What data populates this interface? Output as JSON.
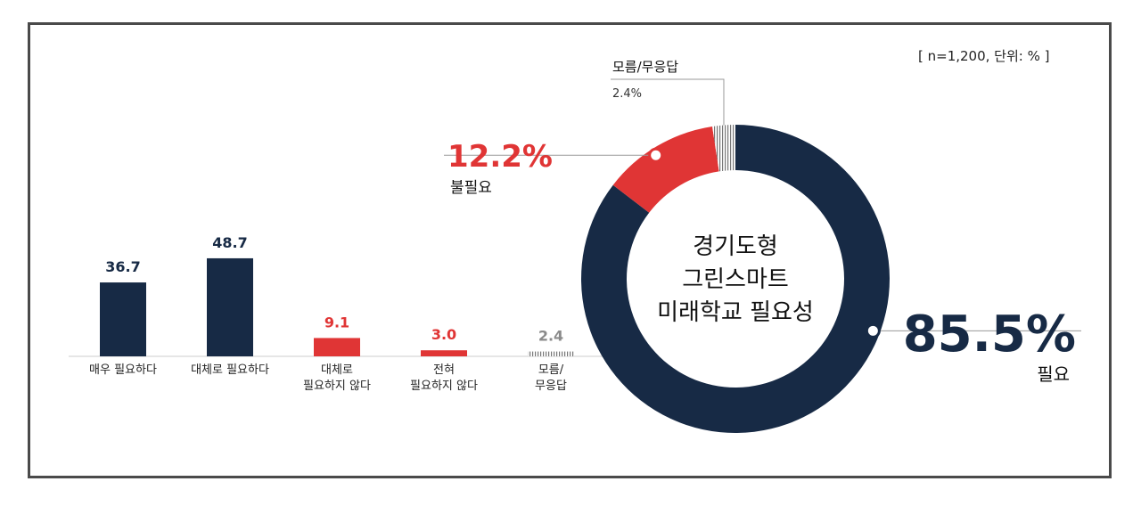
{
  "meta_label": "[ n=1,200, 단위: % ]",
  "colors": {
    "navy": "#172a45",
    "red": "#e03535",
    "gray": "#999999",
    "text": "#222222"
  },
  "chart_data": [
    {
      "type": "bar",
      "categories": [
        "매우 필요하다",
        "대체로 필요하다",
        "대체로\n필요하지 않다",
        "전혀\n필요하지 않다",
        "모름/\n무응답"
      ],
      "values": [
        36.7,
        48.7,
        9.1,
        3.0,
        2.4
      ],
      "value_labels": [
        "36.7",
        "48.7",
        "9.1",
        "3.0",
        "2.4"
      ],
      "bar_colors": [
        "navy",
        "navy",
        "red",
        "red",
        "gray"
      ],
      "ylim": [
        0,
        50
      ]
    },
    {
      "type": "pie",
      "donut": true,
      "center_label": [
        "경기도형",
        "그린스마트",
        "미래학교 필요성"
      ],
      "slices": [
        {
          "label": "필요",
          "value": 85.5,
          "display": "85.5%",
          "color": "navy"
        },
        {
          "label": "불필요",
          "value": 12.2,
          "display": "12.2%",
          "color": "red"
        },
        {
          "label": "모름/무응답",
          "value": 2.4,
          "display": "2.4%",
          "color": "gray"
        }
      ]
    }
  ]
}
